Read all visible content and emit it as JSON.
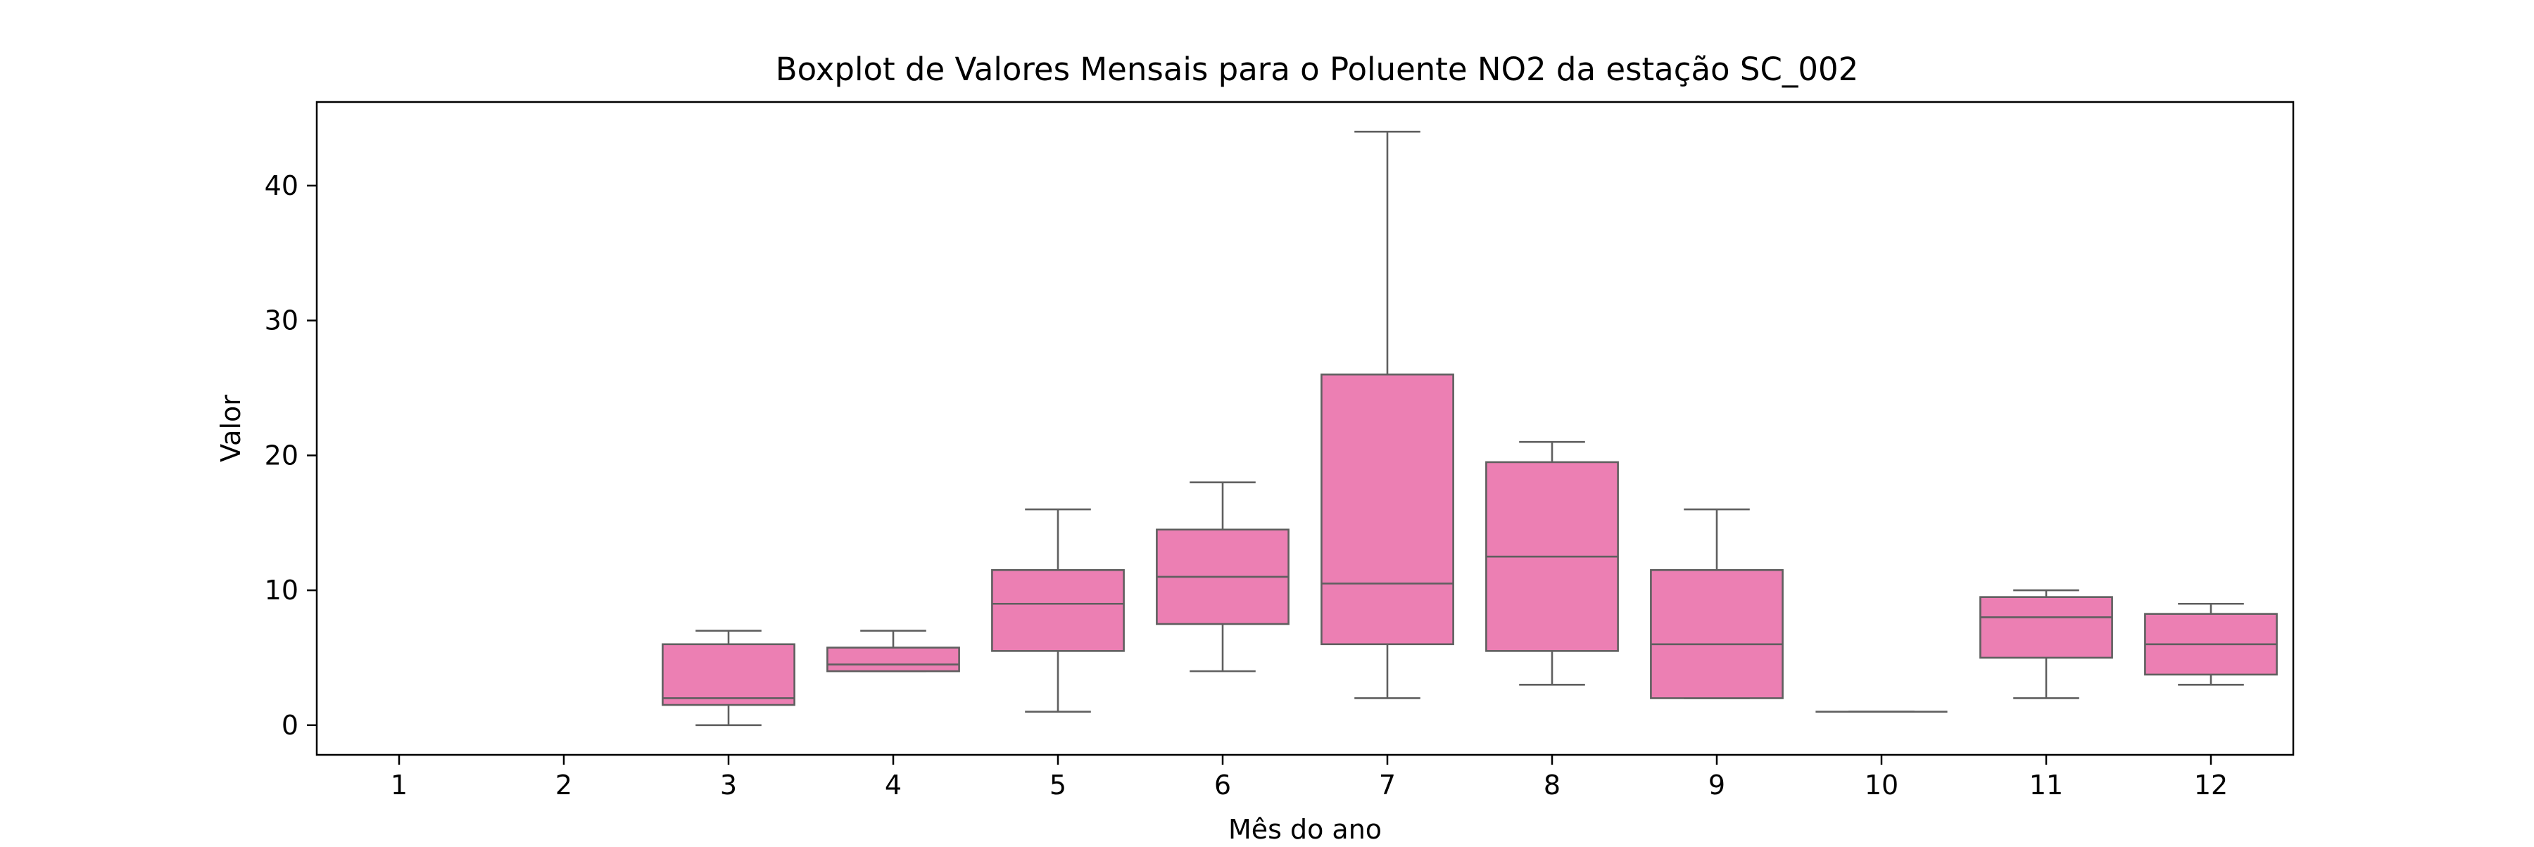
{
  "chart_data": {
    "type": "box",
    "title": "Boxplot de Valores Mensais para o Poluente NO2 da estação SC_002",
    "xlabel": "Mês do ano",
    "ylabel": "Valor",
    "categories": [
      "1",
      "2",
      "3",
      "4",
      "5",
      "6",
      "7",
      "8",
      "9",
      "10",
      "11",
      "12"
    ],
    "ylim": [
      -2.2,
      46.2
    ],
    "yticks": [
      0,
      10,
      20,
      30,
      40
    ],
    "grid": false,
    "legend": "none",
    "box_color": "#ec7fb3",
    "line_color": "#5f5f5f",
    "boxes": [
      null,
      null,
      {
        "whisker_low": 0,
        "q1": 1.5,
        "median": 2,
        "q3": 6,
        "whisker_high": 7
      },
      {
        "whisker_low": 4,
        "q1": 4,
        "median": 4.5,
        "q3": 5.75,
        "whisker_high": 7
      },
      {
        "whisker_low": 1,
        "q1": 5.5,
        "median": 9,
        "q3": 11.5,
        "whisker_high": 16
      },
      {
        "whisker_low": 4,
        "q1": 7.5,
        "median": 11,
        "q3": 14.5,
        "whisker_high": 18
      },
      {
        "whisker_low": 2,
        "q1": 6,
        "median": 10.5,
        "q3": 26,
        "whisker_high": 44
      },
      {
        "whisker_low": 3,
        "q1": 5.5,
        "median": 12.5,
        "q3": 19.5,
        "whisker_high": 21
      },
      {
        "whisker_low": 2,
        "q1": 2,
        "median": 6,
        "q3": 11.5,
        "whisker_high": 16
      },
      {
        "whisker_low": 1,
        "q1": 1,
        "median": 1,
        "q3": 1,
        "whisker_high": 1
      },
      {
        "whisker_low": 2,
        "q1": 5,
        "median": 8,
        "q3": 9.5,
        "whisker_high": 10
      },
      {
        "whisker_low": 3,
        "q1": 3.75,
        "median": 6,
        "q3": 8.25,
        "whisker_high": 9
      }
    ]
  }
}
